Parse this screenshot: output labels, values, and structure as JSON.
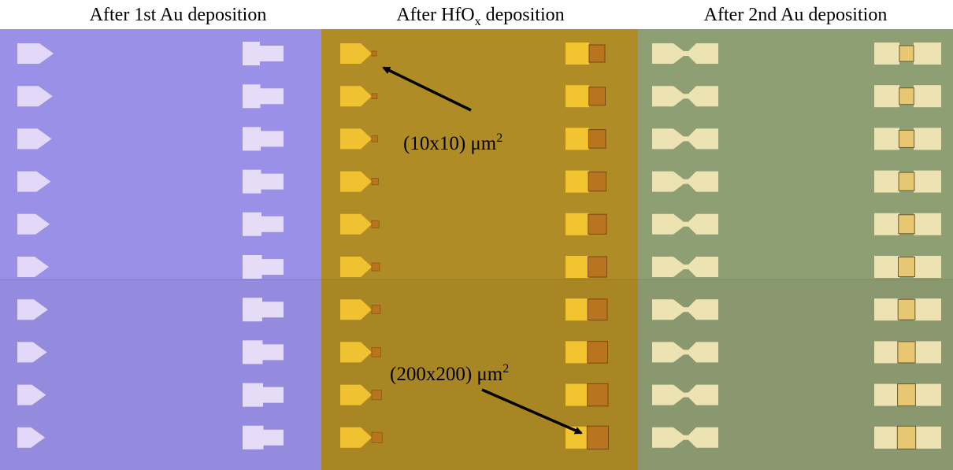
{
  "panels": [
    {
      "title": {
        "main": "After 1st Au deposition"
      }
    },
    {
      "title": {
        "main": "After HfO",
        "sub": "x",
        "rest": " deposition"
      }
    },
    {
      "title": {
        "main": "After 2nd Au deposition"
      }
    }
  ],
  "annotations": [
    {
      "text": "(10x10) μm",
      "sup": "2"
    },
    {
      "text": "(200x200) μm",
      "sup": "2"
    }
  ]
}
